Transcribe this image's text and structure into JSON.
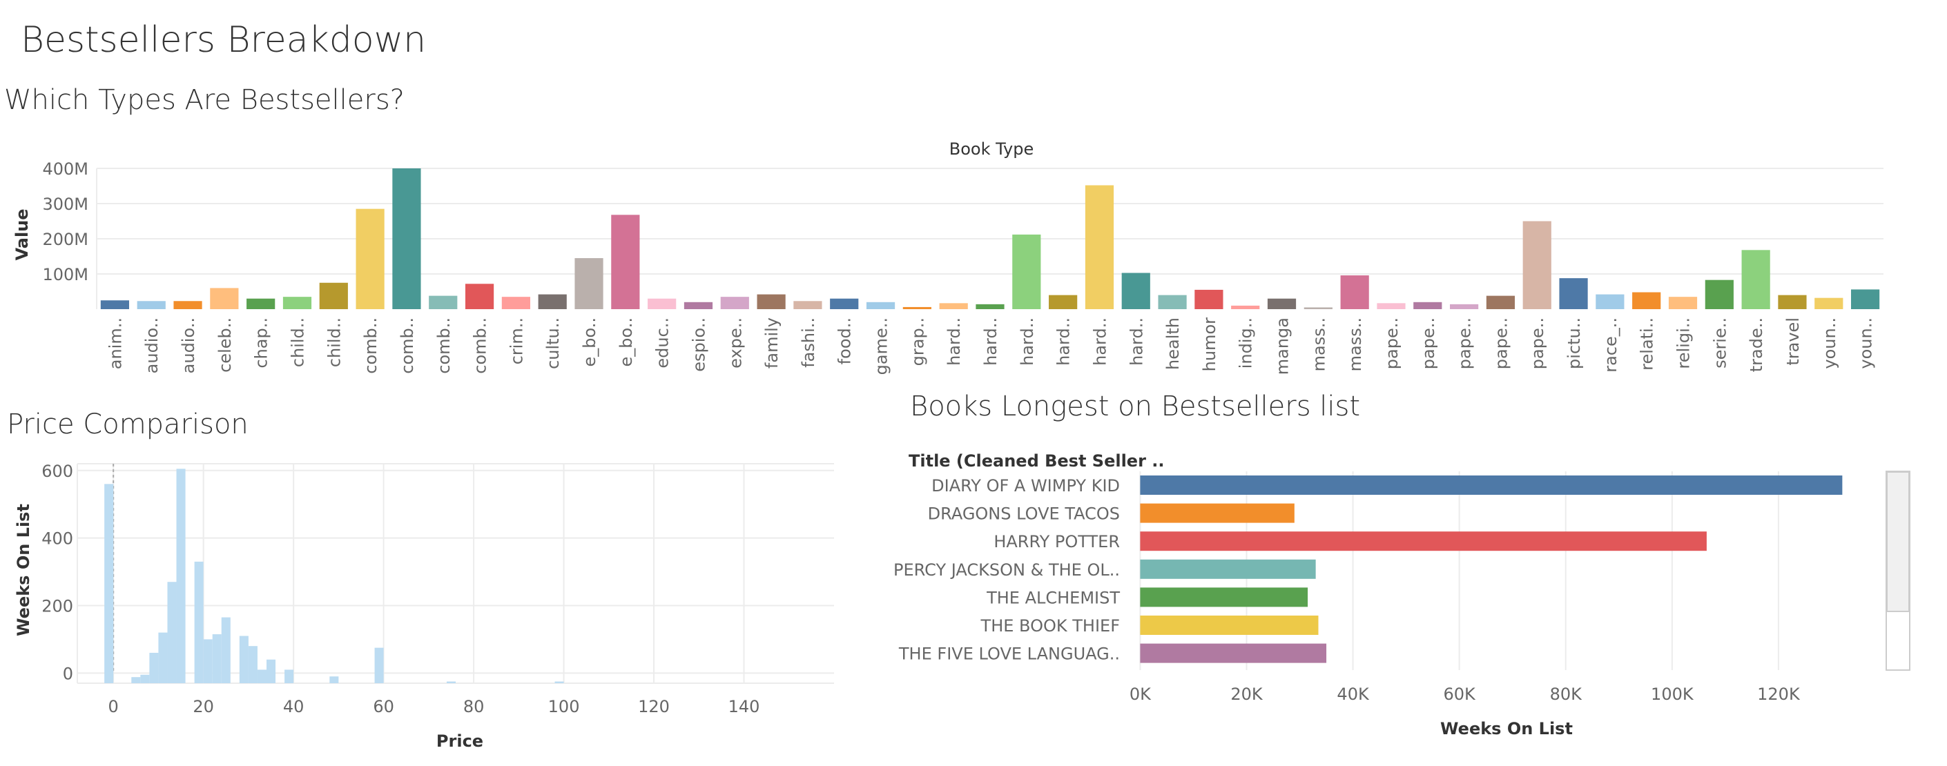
{
  "dashboard": {
    "title": "Bestsellers Breakdown",
    "sections": {
      "types_title": "Which Types Are Bestsellers?",
      "price_title": "Price Comparison",
      "longest_title": "Books Longest on Bestsellers list"
    }
  },
  "colors": {
    "palette": [
      "#4e79a7",
      "#a0cbe8",
      "#f28e2b",
      "#ffbe7d",
      "#59a14f",
      "#8cd17d",
      "#b6992d",
      "#f1ce63",
      "#499894",
      "#86bcb6",
      "#e15759",
      "#ff9d9a",
      "#79706e",
      "#bab0ac",
      "#d37295",
      "#fabfd2",
      "#b07aa1",
      "#d4a6c8",
      "#9d7660",
      "#d7b5a6"
    ],
    "histogram": "#bcdcf2",
    "grid": "#ececec"
  },
  "chart_data": [
    {
      "type": "bar",
      "title": "Book Type",
      "ylabel": "Value",
      "ylim": [
        0,
        400000000
      ],
      "yticks": [
        "100M",
        "200M",
        "300M",
        "400M"
      ],
      "grid": true,
      "categories": [
        "anim..",
        "audio..",
        "audio..",
        "celeb..",
        "chap..",
        "child..",
        "child..",
        "comb..",
        "comb..",
        "comb..",
        "comb..",
        "crim..",
        "cultu..",
        "e_bo..",
        "e_bo..",
        "educ..",
        "espio..",
        "expe..",
        "family",
        "fashi..",
        "food..",
        "game..",
        "grap..",
        "hard..",
        "hard..",
        "hard..",
        "hard..",
        "hard..",
        "hard..",
        "health",
        "humor",
        "indig..",
        "manga",
        "mass..",
        "mass..",
        "pape..",
        "pape..",
        "pape..",
        "pape..",
        "pape..",
        "pictu..",
        "race_..",
        "relati..",
        "religi..",
        "serie..",
        "trade..",
        "travel",
        "youn..",
        "youn.."
      ],
      "values": [
        25000000,
        23000000,
        23000000,
        60000000,
        30000000,
        35000000,
        75000000,
        285000000,
        400000000,
        38000000,
        72000000,
        35000000,
        42000000,
        145000000,
        268000000,
        30000000,
        20000000,
        35000000,
        42000000,
        23000000,
        30000000,
        20000000,
        6000000,
        17000000,
        14000000,
        212000000,
        40000000,
        352000000,
        103000000,
        40000000,
        55000000,
        10000000,
        30000000,
        5000000,
        96000000,
        17000000,
        20000000,
        14000000,
        38000000,
        250000000,
        88000000,
        42000000,
        48000000,
        35000000,
        83000000,
        168000000,
        40000000,
        32000000,
        56000000
      ]
    },
    {
      "type": "bar",
      "subtype": "histogram",
      "xlabel": "Price",
      "ylabel": "Weeks On List",
      "xlim": [
        -8,
        160
      ],
      "ylim": [
        -30,
        620
      ],
      "xticks": [
        "0",
        "20",
        "40",
        "60",
        "80",
        "100",
        "120",
        "140"
      ],
      "yticks": [
        "0",
        "200",
        "400",
        "600"
      ],
      "grid": true,
      "bin_width": 2,
      "bins": [
        {
          "x": -2,
          "y": 560
        },
        {
          "x": 4,
          "y": -12
        },
        {
          "x": 6,
          "y": -5
        },
        {
          "x": 8,
          "y": 60
        },
        {
          "x": 10,
          "y": 120
        },
        {
          "x": 12,
          "y": 270
        },
        {
          "x": 14,
          "y": 605
        },
        {
          "x": 18,
          "y": 330
        },
        {
          "x": 20,
          "y": 100
        },
        {
          "x": 22,
          "y": 115
        },
        {
          "x": 24,
          "y": 165
        },
        {
          "x": 28,
          "y": 110
        },
        {
          "x": 30,
          "y": 80
        },
        {
          "x": 32,
          "y": 10
        },
        {
          "x": 34,
          "y": 40
        },
        {
          "x": 38,
          "y": 10
        },
        {
          "x": 48,
          "y": -10
        },
        {
          "x": 58,
          "y": 75
        },
        {
          "x": 74,
          "y": -25
        },
        {
          "x": 98,
          "y": -25
        }
      ]
    },
    {
      "type": "bar",
      "orientation": "horizontal",
      "xlabel": "Weeks On List",
      "ylabel": "Title (Cleaned Best Seller ..",
      "xlim": [
        -2000,
        140000
      ],
      "xticks": [
        "0K",
        "20K",
        "40K",
        "60K",
        "80K",
        "100K",
        "120K"
      ],
      "grid": true,
      "categories": [
        "DIARY OF A WIMPY KID",
        "DRAGONS LOVE TACOS",
        "HARRY POTTER",
        "PERCY JACKSON & THE OL..",
        "THE ALCHEMIST",
        "THE BOOK THIEF",
        "THE FIVE LOVE LANGUAG.."
      ],
      "values": [
        132000,
        29000,
        106500,
        33000,
        31500,
        33500,
        35000
      ],
      "colors": [
        "#4e79a7",
        "#f28e2b",
        "#e15759",
        "#76b7b2",
        "#59a14f",
        "#edc948",
        "#b07aa1"
      ]
    }
  ]
}
